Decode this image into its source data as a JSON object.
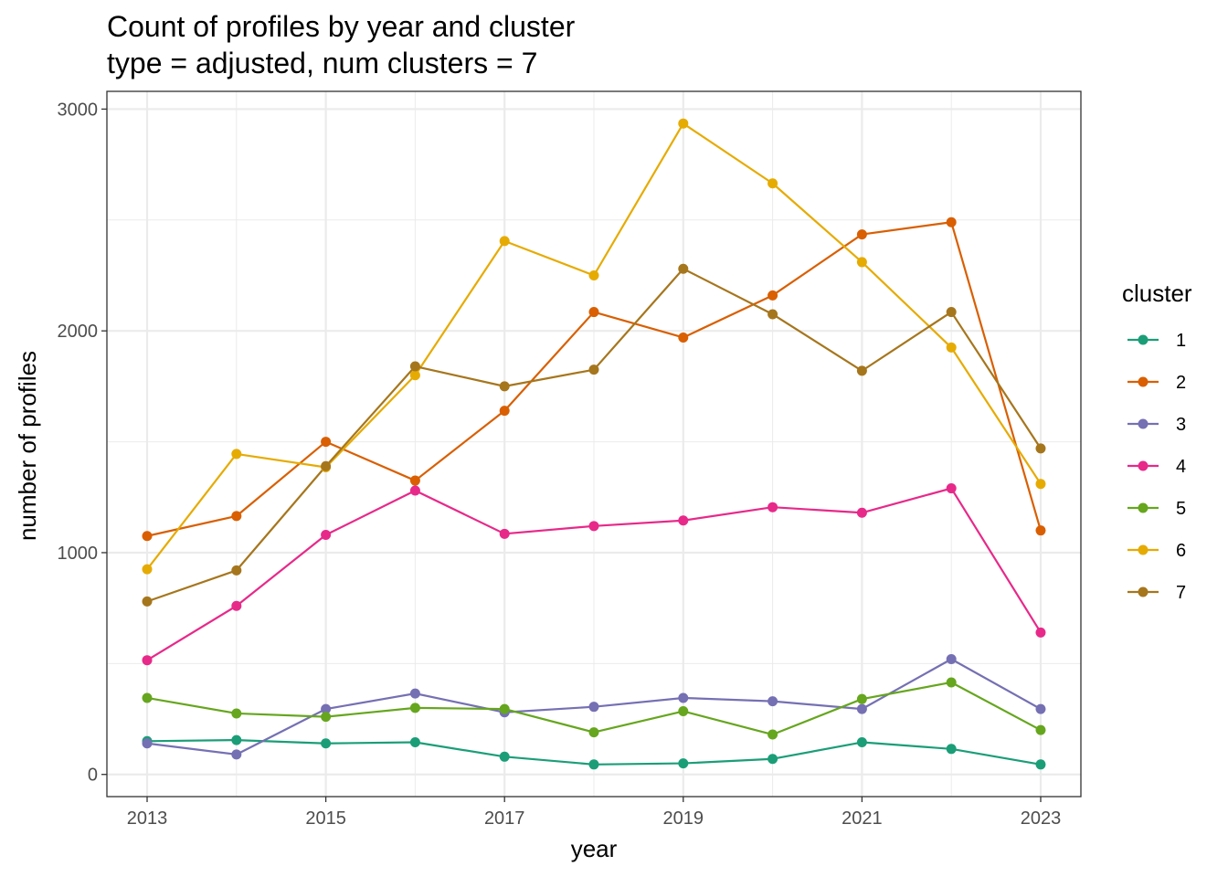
{
  "chart_data": {
    "type": "line",
    "title": "Count of profiles by year and cluster",
    "subtitle": "type = adjusted, num clusters = 7",
    "xlabel": "year",
    "ylabel": "number of profiles",
    "x": [
      2013,
      2014,
      2015,
      2016,
      2017,
      2018,
      2019,
      2020,
      2021,
      2022,
      2023
    ],
    "xticks": [
      "2013",
      "2015",
      "2017",
      "2019",
      "2021",
      "2023"
    ],
    "yticks": [
      "0",
      "1000",
      "2000",
      "3000"
    ],
    "xlim": [
      2012.55,
      2023.45
    ],
    "ylim": [
      -100,
      3080
    ],
    "grid": true,
    "legend_title": "cluster",
    "legend_position": "right",
    "series": [
      {
        "name": "1",
        "color": "#1b9e77",
        "values": [
          150,
          155,
          140,
          145,
          80,
          45,
          50,
          70,
          145,
          115,
          45
        ]
      },
      {
        "name": "2",
        "color": "#d95f02",
        "values": [
          1075,
          1165,
          1500,
          1325,
          1640,
          2085,
          1970,
          2160,
          2435,
          2490,
          1100
        ]
      },
      {
        "name": "3",
        "color": "#7570b3",
        "values": [
          140,
          90,
          295,
          365,
          280,
          305,
          345,
          330,
          295,
          520,
          295
        ]
      },
      {
        "name": "4",
        "color": "#e7298a",
        "values": [
          515,
          760,
          1080,
          1280,
          1085,
          1120,
          1145,
          1205,
          1180,
          1290,
          640
        ]
      },
      {
        "name": "5",
        "color": "#66a61e",
        "values": [
          345,
          275,
          260,
          300,
          295,
          190,
          285,
          180,
          340,
          415,
          200
        ]
      },
      {
        "name": "6",
        "color": "#e6ab02",
        "values": [
          925,
          1445,
          1385,
          1800,
          2405,
          2250,
          2935,
          2665,
          2310,
          1925,
          1310
        ]
      },
      {
        "name": "7",
        "color": "#a6761d",
        "values": [
          780,
          920,
          1390,
          1840,
          1750,
          1825,
          2280,
          2075,
          1820,
          2085,
          1470
        ]
      }
    ]
  }
}
